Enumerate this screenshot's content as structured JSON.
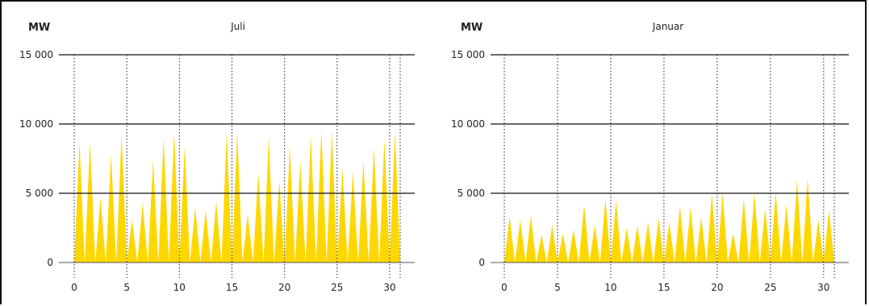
{
  "chart_data": [
    {
      "type": "area",
      "title": "Juli",
      "ylabel": "MW",
      "ylim": [
        0,
        15000
      ],
      "xlim": [
        0,
        31
      ],
      "yticks": [
        0,
        5000,
        10000,
        15000
      ],
      "ytick_labels": [
        "0",
        "5 000",
        "10 000",
        "15 000"
      ],
      "xticks": [
        0,
        5,
        10,
        15,
        20,
        25,
        30
      ],
      "xtick_labels": [
        "0",
        "5",
        "10",
        "15",
        "20",
        "25",
        "30"
      ],
      "vlines": [
        0,
        5,
        10,
        15,
        20,
        25,
        30,
        31
      ],
      "grid": "horizontal lines at 5000, 10000, 15000; dotted vertical lines",
      "color": "#FFD700",
      "daily_peaks": [
        8700,
        8700,
        4700,
        7800,
        9300,
        3100,
        4300,
        7400,
        9000,
        9400,
        8400,
        4000,
        3800,
        4400,
        9400,
        9500,
        3500,
        6500,
        9100,
        5900,
        8400,
        7300,
        9200,
        9600,
        9500,
        6800,
        6600,
        7300,
        8300,
        8900,
        9500
      ]
    },
    {
      "type": "area",
      "title": "Januar",
      "ylabel": "MW",
      "ylim": [
        0,
        15000
      ],
      "xlim": [
        0,
        31
      ],
      "yticks": [
        0,
        5000,
        10000,
        15000
      ],
      "ytick_labels": [
        "0",
        "5 000",
        "10 000",
        "15 000"
      ],
      "xticks": [
        0,
        5,
        10,
        15,
        20,
        25,
        30
      ],
      "xtick_labels": [
        "0",
        "5",
        "10",
        "15",
        "20",
        "25",
        "30"
      ],
      "vlines": [
        0,
        5,
        10,
        15,
        20,
        25,
        30,
        31
      ],
      "grid": "horizontal lines at 5000, 10000, 15000; dotted vertical lines",
      "color": "#FFD700",
      "daily_peaks": [
        3300,
        3100,
        3400,
        2000,
        2700,
        2100,
        2400,
        4200,
        2700,
        4600,
        4500,
        2500,
        2700,
        2900,
        3200,
        2900,
        4100,
        4000,
        3300,
        5000,
        5000,
        2100,
        4600,
        5000,
        3900,
        5100,
        4200,
        6000,
        6100,
        3100,
        3800
      ]
    }
  ]
}
